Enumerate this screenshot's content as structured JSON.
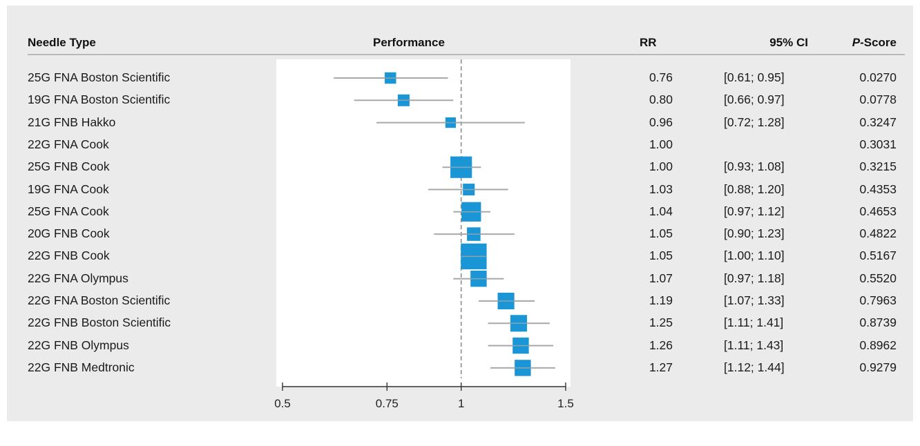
{
  "headers": {
    "needle_type": "Needle Type",
    "performance": "Performance",
    "rr": "RR",
    "ci": "95% CI",
    "pscore_italic": "P",
    "pscore_rest": "-Score"
  },
  "colors": {
    "background": "#ebebeb",
    "panel": "#ffffff",
    "box": "#1a96d6",
    "whisker": "#a8a8a8",
    "reference_line": "#8c8c8c"
  },
  "chart_data": {
    "type": "forest",
    "x_scale": "log",
    "xlim": [
      0.5,
      1.5
    ],
    "x_ticks": [
      0.5,
      0.75,
      1,
      1.5
    ],
    "x_tick_labels": [
      "0.5",
      "0.75",
      "1",
      "1.5"
    ],
    "reference_line": 1,
    "rows": [
      {
        "label": "25G FNA Boston Scientific",
        "rr": 0.76,
        "rr_text": "0.76",
        "lo": 0.61,
        "hi": 0.95,
        "ci_text": "[0.61; 0.95]",
        "p_score": "0.0270",
        "weight": 0.4
      },
      {
        "label": "19G FNA Boston Scientific",
        "rr": 0.8,
        "rr_text": "0.80",
        "lo": 0.66,
        "hi": 0.97,
        "ci_text": "[0.66; 0.97]",
        "p_score": "0.0778",
        "weight": 0.45
      },
      {
        "label": "21G FNB Hakko",
        "rr": 0.96,
        "rr_text": "0.96",
        "lo": 0.72,
        "hi": 1.28,
        "ci_text": "[0.72; 1.28]",
        "p_score": "0.3247",
        "weight": 0.3
      },
      {
        "label": "22G FNA Cook",
        "rr": 1.0,
        "rr_text": "1.00",
        "lo": null,
        "hi": null,
        "ci_text": "",
        "p_score": "0.3031",
        "weight": 0
      },
      {
        "label": "25G FNB Cook",
        "rr": 1.0,
        "rr_text": "1.00",
        "lo": 0.93,
        "hi": 1.08,
        "ci_text": "[0.93; 1.08]",
        "p_score": "0.3215",
        "weight": 2.6
      },
      {
        "label": "19G FNA Cook",
        "rr": 1.03,
        "rr_text": "1.03",
        "lo": 0.88,
        "hi": 1.2,
        "ci_text": "[0.88; 1.20]",
        "p_score": "0.4353",
        "weight": 0.45
      },
      {
        "label": "25G FNA Cook",
        "rr": 1.04,
        "rr_text": "1.04",
        "lo": 0.97,
        "hi": 1.12,
        "ci_text": "[0.97; 1.12]",
        "p_score": "0.4653",
        "weight": 2.0
      },
      {
        "label": "20G FNB Cook",
        "rr": 1.05,
        "rr_text": "1.05",
        "lo": 0.9,
        "hi": 1.23,
        "ci_text": "[0.90; 1.23]",
        "p_score": "0.4822",
        "weight": 0.7
      },
      {
        "label": "22G FNB Cook",
        "rr": 1.05,
        "rr_text": "1.05",
        "lo": 1.0,
        "hi": 1.1,
        "ci_text": "[1.00; 1.10]",
        "p_score": "0.5167",
        "weight": 4.1
      },
      {
        "label": "22G FNA Olympus",
        "rr": 1.07,
        "rr_text": "1.07",
        "lo": 0.97,
        "hi": 1.18,
        "ci_text": "[0.97; 1.18]",
        "p_score": "0.5520",
        "weight": 1.2
      },
      {
        "label": "22G FNA Boston Scientific",
        "rr": 1.19,
        "rr_text": "1.19",
        "lo": 1.07,
        "hi": 1.33,
        "ci_text": "[1.07; 1.33]",
        "p_score": "0.7963",
        "weight": 1.3
      },
      {
        "label": "22G FNB Boston Scientific",
        "rr": 1.25,
        "rr_text": "1.25",
        "lo": 1.11,
        "hi": 1.41,
        "ci_text": "[1.11; 1.41]",
        "p_score": "0.8739",
        "weight": 1.3
      },
      {
        "label": "22G FNB Olympus",
        "rr": 1.26,
        "rr_text": "1.26",
        "lo": 1.11,
        "hi": 1.43,
        "ci_text": "[1.11; 1.43]",
        "p_score": "0.8962",
        "weight": 1.2
      },
      {
        "label": "22G FNB Medtronic",
        "rr": 1.27,
        "rr_text": "1.27",
        "lo": 1.12,
        "hi": 1.44,
        "ci_text": "[1.12; 1.44]",
        "p_score": "0.9279",
        "weight": 1.2
      }
    ]
  }
}
